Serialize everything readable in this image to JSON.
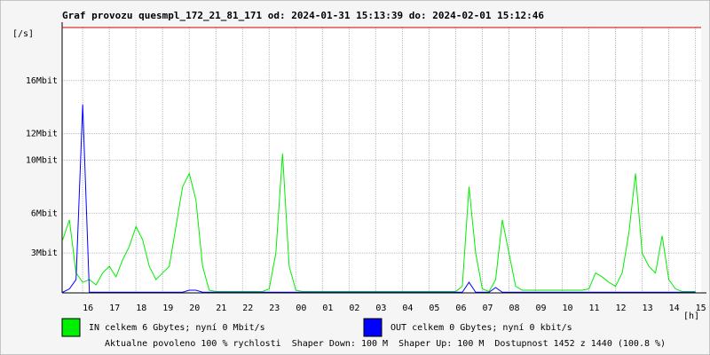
{
  "chart_data": {
    "type": "line",
    "title": "Graf provozu quesmpl_172_21_81_171 od: 2024-01-31 15:13:39 do: 2024-02-01 15:12:46",
    "y_unit": "[/s]",
    "x_unit": "[h]",
    "xlim": [
      15.2275,
      39.2128
    ],
    "ylim": [
      0,
      20
    ],
    "xticks": [
      16,
      17,
      18,
      19,
      20,
      21,
      22,
      23,
      {
        "value": 24,
        "label": "00"
      },
      {
        "value": 25,
        "label": "01"
      },
      {
        "value": 26,
        "label": "02"
      },
      {
        "value": 27,
        "label": "03"
      },
      {
        "value": 28,
        "label": "04"
      },
      {
        "value": 29,
        "label": "05"
      },
      {
        "value": 30,
        "label": "06"
      },
      {
        "value": 31,
        "label": "07"
      },
      {
        "value": 32,
        "label": "08"
      },
      {
        "value": 33,
        "label": "09"
      },
      {
        "value": 34,
        "label": "10"
      },
      {
        "value": 35,
        "label": "11"
      },
      {
        "value": 36,
        "label": "12"
      },
      {
        "value": 37,
        "label": "13"
      },
      {
        "value": 38,
        "label": "14"
      },
      {
        "value": 39,
        "label": "15"
      }
    ],
    "yticks": [
      {
        "value": 3,
        "label": "3Mbit"
      },
      {
        "value": 6,
        "label": "6Mbit"
      },
      {
        "value": 10,
        "label": "10Mbit"
      },
      {
        "value": 12,
        "label": "12Mbit"
      },
      {
        "value": 16,
        "label": "16Mbit"
      }
    ],
    "grid": true,
    "x": [
      15.25,
      15.5,
      15.75,
      16,
      16.25,
      16.5,
      16.75,
      17,
      17.25,
      17.5,
      17.75,
      18,
      18.25,
      18.5,
      18.75,
      19,
      19.25,
      19.5,
      19.75,
      20,
      20.25,
      20.5,
      20.75,
      21,
      21.25,
      21.5,
      21.75,
      22,
      22.25,
      22.5,
      22.75,
      23,
      23.25,
      23.5,
      23.75,
      24,
      24.25,
      24.5,
      24.75,
      25,
      25.25,
      25.5,
      25.75,
      26,
      26.25,
      26.5,
      26.75,
      27,
      27.25,
      27.5,
      27.75,
      28,
      28.25,
      28.5,
      28.75,
      29,
      29.25,
      29.5,
      29.75,
      30,
      30.25,
      30.5,
      30.75,
      31,
      31.25,
      31.5,
      31.75,
      32,
      32.25,
      32.5,
      32.75,
      33,
      33.25,
      33.5,
      33.75,
      34,
      34.25,
      34.5,
      34.75,
      35,
      35.25,
      35.5,
      35.75,
      36,
      36.25,
      36.5,
      36.75,
      37,
      37.25,
      37.5,
      37.75,
      38,
      38.25,
      38.5,
      38.75,
      39
    ],
    "series": [
      {
        "name": "IN celkem 6 Gbytes; nyní 0 Mbit/s",
        "color": "#00ee00",
        "values": [
          4,
          5.5,
          1.5,
          0.8,
          1,
          0.6,
          1.5,
          2,
          1.2,
          2.5,
          3.5,
          5,
          4,
          2,
          1,
          1.5,
          2,
          5,
          8,
          9,
          7,
          2,
          0.2,
          0.1,
          0.1,
          0.1,
          0.1,
          0.1,
          0.1,
          0.1,
          0.1,
          0.3,
          3,
          10.5,
          2,
          0.2,
          0.1,
          0.1,
          0.1,
          0.1,
          0.1,
          0.1,
          0.1,
          0.1,
          0.1,
          0.1,
          0.1,
          0.1,
          0.1,
          0.1,
          0.1,
          0.1,
          0.1,
          0.1,
          0.1,
          0.1,
          0.1,
          0.1,
          0.1,
          0.1,
          0.5,
          8,
          3,
          0.3,
          0.1,
          1,
          5.5,
          3,
          0.5,
          0.2,
          0.2,
          0.2,
          0.2,
          0.2,
          0.2,
          0.2,
          0.2,
          0.2,
          0.2,
          0.3,
          1.5,
          1.2,
          0.8,
          0.5,
          1.5,
          4.5,
          9,
          3,
          2,
          1.5,
          4.3,
          1,
          0.3,
          0.1,
          0.1,
          0.1
        ]
      },
      {
        "name": "OUT celkem 0 Gbytes; nyní 0 kbit/s",
        "color": "#0000ff",
        "values": [
          0.05,
          0.3,
          1,
          14.2,
          0.05,
          0.05,
          0.05,
          0.05,
          0.05,
          0.05,
          0.05,
          0.05,
          0.05,
          0.05,
          0.05,
          0.05,
          0.05,
          0.05,
          0.05,
          0.2,
          0.2,
          0.05,
          0.05,
          0.05,
          0.05,
          0.05,
          0.05,
          0.05,
          0.05,
          0.05,
          0.05,
          0.05,
          0.05,
          0.05,
          0.05,
          0.05,
          0.05,
          0.05,
          0.05,
          0.05,
          0.05,
          0.05,
          0.05,
          0.05,
          0.05,
          0.05,
          0.05,
          0.05,
          0.05,
          0.05,
          0.05,
          0.05,
          0.05,
          0.05,
          0.05,
          0.05,
          0.05,
          0.05,
          0.05,
          0.05,
          0.05,
          0.8,
          0.05,
          0.05,
          0.05,
          0.4,
          0.05,
          0.05,
          0.05,
          0.05,
          0.05,
          0.05,
          0.05,
          0.05,
          0.05,
          0.05,
          0.05,
          0.05,
          0.05,
          0.05,
          0.05,
          0.05,
          0.05,
          0.05,
          0.05,
          0.05,
          0.05,
          0.05,
          0.05,
          0.05,
          0.05,
          0.05,
          0.05,
          0.05,
          0.05,
          0.05
        ]
      }
    ],
    "footer": [
      {
        "text": "Aktualne povoleno 100 % rychlosti",
        "color": "#ff0000"
      },
      {
        "text": "Shaper Down: 100 M",
        "color": "#000000"
      },
      {
        "text": "Shaper Up: 100 M",
        "color": "#800080"
      },
      {
        "text": "Dostupnost 1452 z 1440 (100.8 %)",
        "color": "#000000"
      }
    ]
  }
}
